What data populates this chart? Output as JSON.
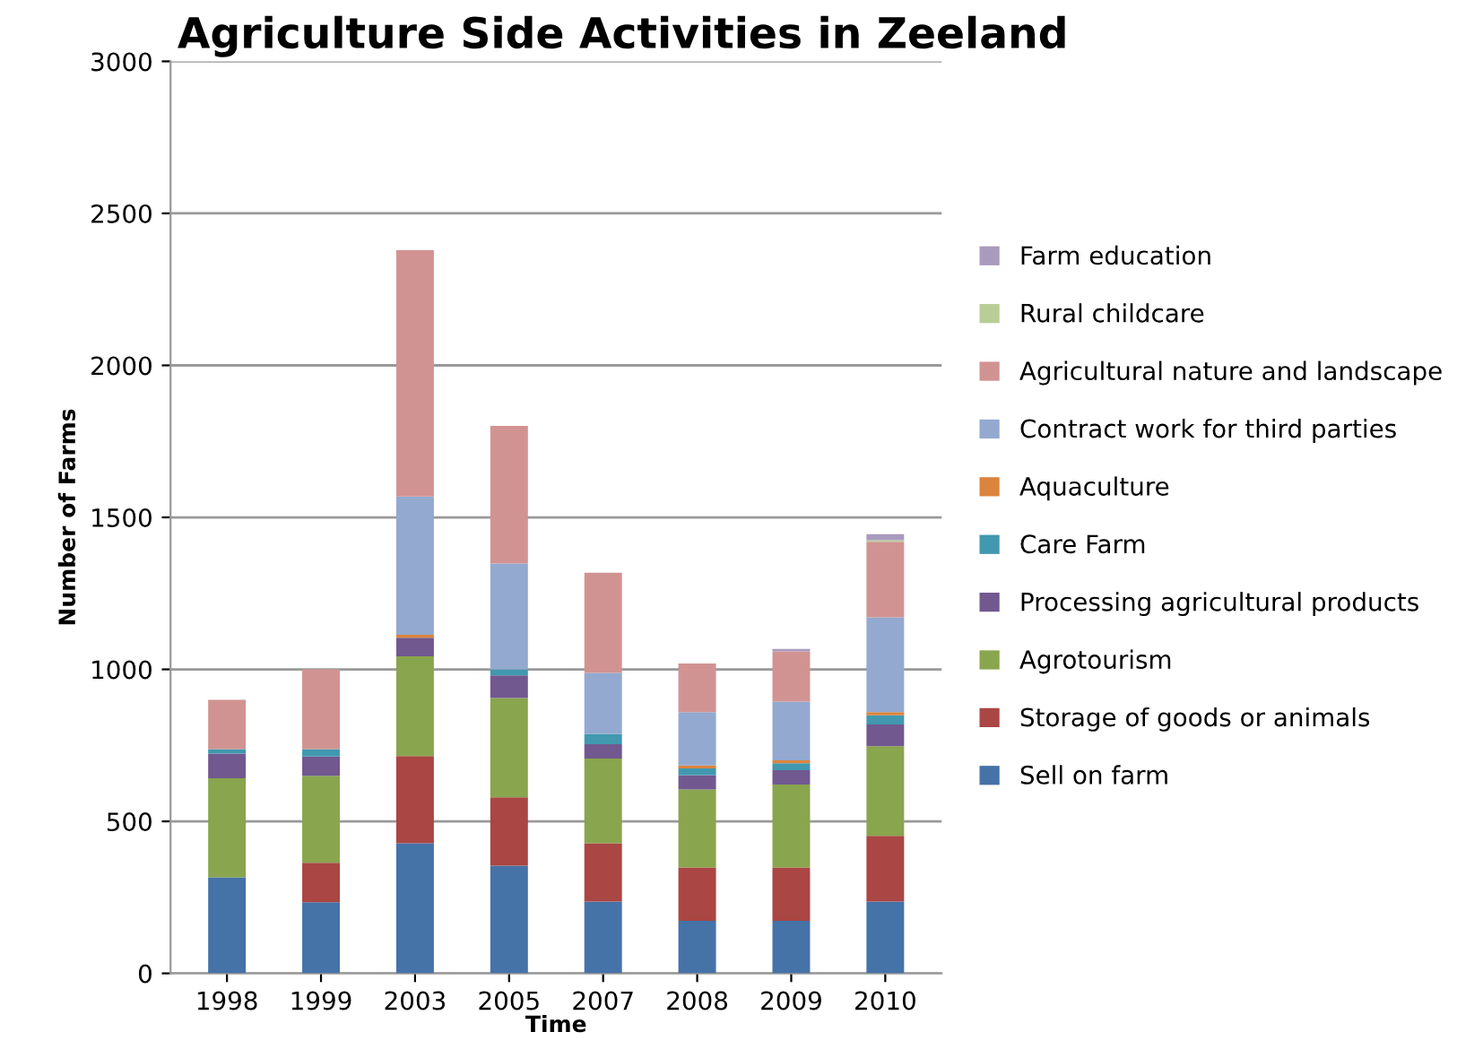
{
  "chart_data": {
    "type": "bar",
    "stacked": true,
    "title": "Agriculture Side Activities in Zeeland",
    "xlabel": "Time",
    "ylabel": "Number of Farms",
    "categories": [
      "1998",
      "1999",
      "2003",
      "2005",
      "2007",
      "2008",
      "2009",
      "2010"
    ],
    "series": [
      {
        "name": "Sell on farm",
        "color": "#4572a7",
        "values": [
          316,
          234,
          428,
          354,
          236,
          173,
          173,
          236
        ]
      },
      {
        "name": "Storage of goods or animals",
        "color": "#aa4643",
        "values": [
          0,
          130,
          287,
          225,
          192,
          175,
          175,
          216
        ]
      },
      {
        "name": "Agrotourism",
        "color": "#89a54e",
        "values": [
          326,
          286,
          328,
          327,
          279,
          257,
          273,
          295
        ]
      },
      {
        "name": "Processing agricultural products",
        "color": "#71588f",
        "values": [
          81,
          63,
          61,
          74,
          47,
          47,
          47,
          72
        ]
      },
      {
        "name": "Care Farm",
        "color": "#4198af",
        "values": [
          15,
          25,
          0,
          20,
          34,
          22,
          23,
          30
        ]
      },
      {
        "name": "Aquaculture",
        "color": "#db843d",
        "values": [
          0,
          0,
          10,
          0,
          0,
          10,
          10,
          10
        ]
      },
      {
        "name": "Contract work for third parties",
        "color": "#93a9cf",
        "values": [
          0,
          0,
          455,
          348,
          200,
          175,
          193,
          312
        ]
      },
      {
        "name": "Agricultural nature and landscape",
        "color": "#d19392",
        "values": [
          162,
          262,
          810,
          453,
          330,
          160,
          165,
          249
        ]
      },
      {
        "name": "Rural childcare",
        "color": "#b9cd96",
        "values": [
          0,
          0,
          0,
          0,
          0,
          0,
          0,
          5
        ]
      },
      {
        "name": "Farm education",
        "color": "#a99bbd",
        "values": [
          0,
          0,
          0,
          0,
          0,
          0,
          8,
          20
        ]
      }
    ],
    "ylim": [
      0,
      3000
    ],
    "yticks": [
      0,
      500,
      1000,
      1500,
      2000,
      2500,
      3000
    ],
    "grid": "y",
    "legend": "right"
  }
}
